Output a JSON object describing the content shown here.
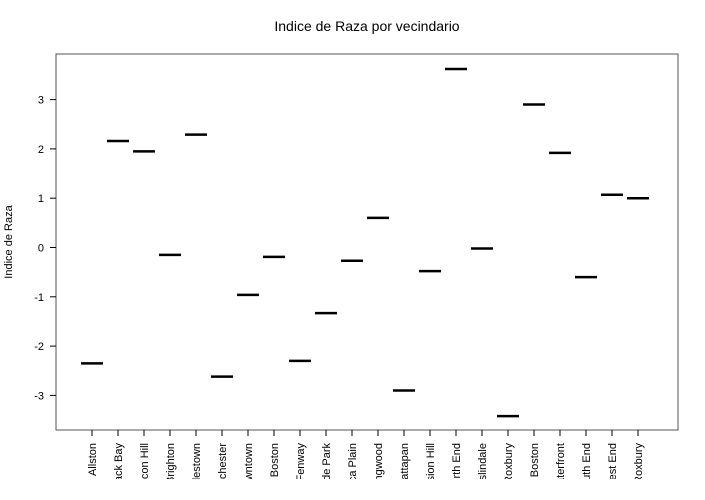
{
  "chart_data": {
    "type": "scatter",
    "marker": "horizontal-dash",
    "title": "Indice de Raza por vecindario",
    "xlabel": "",
    "ylabel": "Indice de Raza",
    "ylim": [
      -3.7,
      3.9
    ],
    "yticks": [
      -3,
      -2,
      -1,
      0,
      1,
      2,
      3
    ],
    "ytick_labels": [
      "-3",
      "-2",
      "-1",
      "0",
      "1",
      "2",
      "3"
    ],
    "grid": false,
    "categories": [
      "Allston",
      "Back Bay",
      "Beacon Hill",
      "Brighton",
      "Charlestown",
      "Dorchester",
      "Downtown",
      "East Boston",
      "Fenway",
      "Hyde Park",
      "Jamaica Plain",
      "Longwood",
      "Mattapan",
      "Mission Hill",
      "North End",
      "Roslindale",
      "Roxbury",
      "South Boston",
      "Waterfront",
      "South End",
      "West End",
      "West Roxbury"
    ],
    "values": [
      -2.35,
      2.16,
      1.95,
      -0.15,
      2.29,
      -2.62,
      -0.96,
      -0.19,
      -2.3,
      -1.33,
      -0.27,
      0.6,
      -2.9,
      -0.48,
      3.62,
      -0.02,
      -3.42,
      2.9,
      1.92,
      -0.6,
      1.07,
      1.0
    ],
    "mark_color": "#000000"
  }
}
